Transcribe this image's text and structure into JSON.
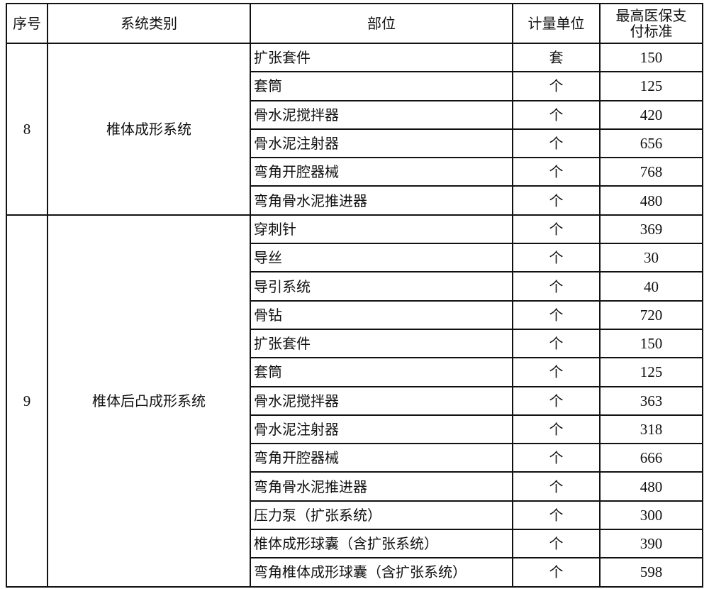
{
  "headers": [
    "序号",
    "系统类别",
    "部位",
    "计量单位",
    "最高医保支付标准"
  ],
  "groups": [
    {
      "no": "8",
      "category": "椎体成形系统",
      "rows": [
        [
          "扩张套件",
          "套",
          "150"
        ],
        [
          "套筒",
          "个",
          "125"
        ],
        [
          "骨水泥搅拌器",
          "个",
          "420"
        ],
        [
          "骨水泥注射器",
          "个",
          "656"
        ],
        [
          "弯角开腔器械",
          "个",
          "768"
        ],
        [
          "弯角骨水泥推进器",
          "个",
          "480"
        ]
      ]
    },
    {
      "no": "9",
      "category": "椎体后凸成形系统",
      "rows": [
        [
          "穿刺针",
          "个",
          "369"
        ],
        [
          "导丝",
          "个",
          "30"
        ],
        [
          "导引系统",
          "个",
          "40"
        ],
        [
          "骨钻",
          "个",
          "720"
        ],
        [
          "扩张套件",
          "个",
          "150"
        ],
        [
          "套筒",
          "个",
          "125"
        ],
        [
          "骨水泥搅拌器",
          "个",
          "363"
        ],
        [
          "骨水泥注射器",
          "个",
          "318"
        ],
        [
          "弯角开腔器械",
          "个",
          "666"
        ],
        [
          "弯角骨水泥推进器",
          "个",
          "480"
        ],
        [
          "压力泵（扩张系统）",
          "个",
          "300"
        ],
        [
          "椎体成形球囊（含扩张系统）",
          "个",
          "390"
        ],
        [
          "弯角椎体成形球囊（含扩张系统）",
          "个",
          "598"
        ]
      ]
    }
  ]
}
